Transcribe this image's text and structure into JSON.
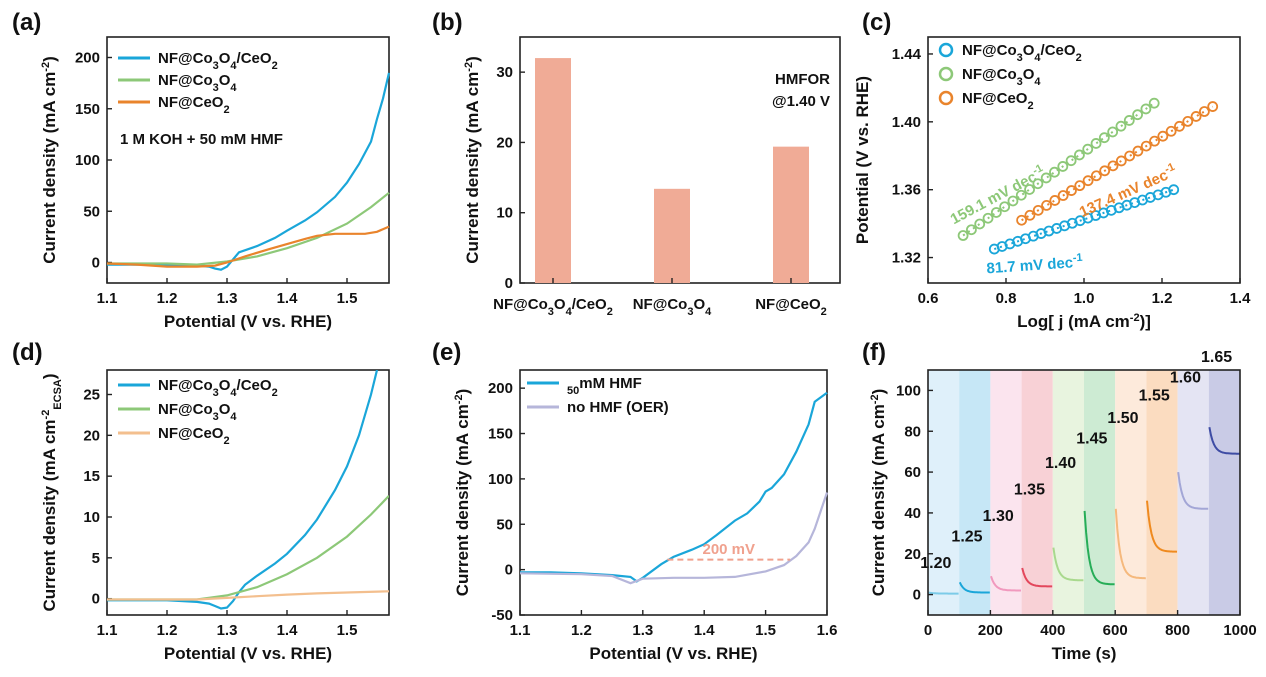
{
  "chart_data": [
    {
      "panel": "(a)",
      "type": "line",
      "xlabel": "Potential (V vs. RHE)",
      "ylabel": "Current density (mA cm-2)",
      "xlim": [
        1.1,
        1.57
      ],
      "ylim": [
        -20,
        220
      ],
      "xticks": [
        "1.1",
        "1.2",
        "1.3",
        "1.4",
        "1.5"
      ],
      "yticks": [
        "0",
        "50",
        "100",
        "150",
        "200"
      ],
      "annotation": "1 M KOH + 50 mM HMF",
      "legend": "top-left",
      "series": [
        {
          "name": "NF@Co3O4/CeO2",
          "color": "#1aa6d9",
          "x": [
            1.1,
            1.15,
            1.2,
            1.25,
            1.27,
            1.28,
            1.29,
            1.3,
            1.31,
            1.32,
            1.35,
            1.38,
            1.4,
            1.43,
            1.45,
            1.48,
            1.5,
            1.52,
            1.54,
            1.55,
            1.56,
            1.57
          ],
          "y": [
            -2,
            -2,
            -2,
            -3,
            -4,
            -6,
            -7,
            -4,
            3,
            10,
            16,
            24,
            31,
            41,
            49,
            64,
            78,
            96,
            118,
            140,
            160,
            185
          ]
        },
        {
          "name": "NF@Co3O4",
          "color": "#8dc878",
          "x": [
            1.1,
            1.2,
            1.25,
            1.3,
            1.35,
            1.4,
            1.45,
            1.5,
            1.54,
            1.57
          ],
          "y": [
            -1,
            -1,
            -2,
            1,
            6,
            14,
            24,
            38,
            54,
            68
          ]
        },
        {
          "name": "NF@CeO2",
          "color": "#e9842c",
          "x": [
            1.1,
            1.15,
            1.2,
            1.25,
            1.28,
            1.3,
            1.33,
            1.37,
            1.4,
            1.43,
            1.45,
            1.48,
            1.5,
            1.53,
            1.55,
            1.57
          ],
          "y": [
            -1,
            -2,
            -4,
            -4,
            -3,
            0,
            6,
            13,
            18,
            23,
            26,
            28,
            28,
            28,
            30,
            35
          ]
        }
      ]
    },
    {
      "panel": "(b)",
      "type": "bar",
      "ylabel": "Current density (mA cm-2)",
      "ylim": [
        0,
        35
      ],
      "yticks": [
        "0",
        "10",
        "20",
        "30"
      ],
      "categories": [
        "NF@Co3O4/CeO2",
        "NF@Co3O4",
        "NF@CeO2"
      ],
      "values": [
        32.0,
        13.4,
        19.4
      ],
      "bar_color": "#f0ab96",
      "annotation": [
        "HMFOR",
        "@1.40 V"
      ]
    },
    {
      "panel": "(c)",
      "type": "scatter",
      "xlabel": "Log[ j (mA cm-2)]",
      "ylabel": "Potential (V vs. RHE)",
      "xlim": [
        0.6,
        1.4
      ],
      "ylim": [
        1.305,
        1.45
      ],
      "xticks": [
        "0.6",
        "0.8",
        "1.0",
        "1.2",
        "1.4"
      ],
      "yticks": [
        "1.32",
        "1.36",
        "1.40",
        "1.44"
      ],
      "legend": "top-right",
      "series": [
        {
          "name": "NF@Co3O4/CeO2",
          "color": "#1aa6d9",
          "x_range": [
            0.77,
            1.23
          ],
          "y_range": [
            1.325,
            1.36
          ],
          "slope_label": "81.7 mV dec-1"
        },
        {
          "name": "NF@Co3O4",
          "color": "#8dc878",
          "x_range": [
            0.69,
            1.18
          ],
          "y_range": [
            1.333,
            1.411
          ],
          "slope_label": "159.1 mV dec-1"
        },
        {
          "name": "NF@CeO2",
          "color": "#e9842c",
          "x_range": [
            0.84,
            1.33
          ],
          "y_range": [
            1.342,
            1.409
          ],
          "slope_label": "137.4 mV dec-1"
        }
      ]
    },
    {
      "panel": "(d)",
      "type": "line",
      "xlabel": "Potential (V vs. RHE)",
      "ylabel": "Current density (mA cm-2 ECSA)",
      "xlim": [
        1.1,
        1.57
      ],
      "ylim": [
        -2,
        28
      ],
      "xticks": [
        "1.1",
        "1.2",
        "1.3",
        "1.4",
        "1.5"
      ],
      "yticks": [
        "0",
        "5",
        "10",
        "15",
        "20",
        "25"
      ],
      "legend": "top-left",
      "series": [
        {
          "name": "NF@Co3O4/CeO2",
          "color": "#1aa6d9",
          "x": [
            1.1,
            1.2,
            1.25,
            1.27,
            1.28,
            1.29,
            1.3,
            1.31,
            1.32,
            1.33,
            1.35,
            1.38,
            1.4,
            1.43,
            1.45,
            1.48,
            1.5,
            1.52,
            1.54,
            1.55
          ],
          "y": [
            -0.2,
            -0.2,
            -0.4,
            -0.6,
            -0.9,
            -1.2,
            -1.1,
            -0.3,
            0.8,
            1.7,
            2.8,
            4.3,
            5.5,
            7.8,
            9.7,
            13.3,
            16.2,
            20.0,
            25.0,
            28.0
          ]
        },
        {
          "name": "NF@Co3O4",
          "color": "#8dc878",
          "x": [
            1.1,
            1.2,
            1.25,
            1.3,
            1.35,
            1.4,
            1.45,
            1.5,
            1.54,
            1.57
          ],
          "y": [
            -0.1,
            -0.1,
            -0.1,
            0.4,
            1.4,
            3.0,
            5.0,
            7.6,
            10.3,
            12.6
          ]
        },
        {
          "name": "NF@CeO2",
          "color": "#f3bf8e",
          "x": [
            1.1,
            1.2,
            1.25,
            1.3,
            1.35,
            1.4,
            1.45,
            1.5,
            1.57
          ],
          "y": [
            -0.1,
            -0.1,
            -0.1,
            0.1,
            0.3,
            0.5,
            0.65,
            0.75,
            0.9
          ]
        }
      ]
    },
    {
      "panel": "(e)",
      "type": "line",
      "xlabel": "Potential (V vs. RHE)",
      "ylabel": "Current density (mA cm-2)",
      "xlim": [
        1.1,
        1.6
      ],
      "ylim": [
        -50,
        220
      ],
      "xticks": [
        "1.1",
        "1.2",
        "1.3",
        "1.4",
        "1.5",
        "1.6"
      ],
      "yticks": [
        "-50",
        "0",
        "50",
        "100",
        "150",
        "200"
      ],
      "legend": "top-left",
      "annotation": "200 mV",
      "series": [
        {
          "name": "50mM HMF",
          "color": "#1aa6d9",
          "x": [
            1.1,
            1.15,
            1.2,
            1.25,
            1.28,
            1.29,
            1.3,
            1.33,
            1.35,
            1.38,
            1.4,
            1.42,
            1.45,
            1.47,
            1.49,
            1.5,
            1.51,
            1.53,
            1.55,
            1.57,
            1.58,
            1.6
          ],
          "y": [
            -3,
            -3,
            -4,
            -6,
            -8,
            -13,
            -9,
            6,
            14,
            22,
            28,
            38,
            54,
            62,
            75,
            86,
            90,
            105,
            130,
            160,
            185,
            195
          ]
        },
        {
          "name": "no HMF (OER)",
          "color": "#b6b6da",
          "x": [
            1.1,
            1.2,
            1.25,
            1.28,
            1.3,
            1.35,
            1.4,
            1.45,
            1.5,
            1.53,
            1.55,
            1.57,
            1.58,
            1.6
          ],
          "y": [
            -4,
            -5,
            -7,
            -15,
            -10,
            -9,
            -9,
            -8,
            -2,
            5,
            15,
            30,
            45,
            85
          ]
        }
      ]
    },
    {
      "panel": "(f)",
      "type": "line",
      "xlabel": "Time (s)",
      "ylabel": "Current density (mA cm-2)",
      "xlim": [
        0,
        1000
      ],
      "ylim": [
        -10,
        110
      ],
      "xticks": [
        "0",
        "200",
        "400",
        "600",
        "800",
        "1000"
      ],
      "yticks": [
        "0",
        "20",
        "40",
        "60",
        "80",
        "100"
      ],
      "steps": [
        {
          "potential": "1.20",
          "color": "#7ccbe8",
          "bg": "#dff0fa",
          "spike": 1,
          "steady": 0.5
        },
        {
          "potential": "1.25",
          "color": "#1aa6d9",
          "bg": "#c6e7f6",
          "spike": 6,
          "steady": 1
        },
        {
          "potential": "1.30",
          "color": "#f199be",
          "bg": "#fbe4ee",
          "spike": 9,
          "steady": 2
        },
        {
          "potential": "1.35",
          "color": "#e3475c",
          "bg": "#f8d1d6",
          "spike": 13,
          "steady": 4
        },
        {
          "potential": "1.40",
          "color": "#a9d98e",
          "bg": "#e8f4df",
          "spike": 23,
          "steady": 7
        },
        {
          "potential": "1.45",
          "color": "#27ad57",
          "bg": "#cdebd3",
          "spike": 41,
          "steady": 5
        },
        {
          "potential": "1.50",
          "color": "#f5b97d",
          "bg": "#fdeadb",
          "spike": 42,
          "steady": 8
        },
        {
          "potential": "1.55",
          "color": "#ef8a1f",
          "bg": "#fbdcc0",
          "spike": 46,
          "steady": 21
        },
        {
          "potential": "1.60",
          "color": "#a3a6d6",
          "bg": "#e4e4f3",
          "spike": 60,
          "steady": 42
        },
        {
          "potential": "1.65",
          "color": "#3e4ca4",
          "bg": "#c9cbe6",
          "spike": 82,
          "steady": 69
        }
      ]
    }
  ]
}
